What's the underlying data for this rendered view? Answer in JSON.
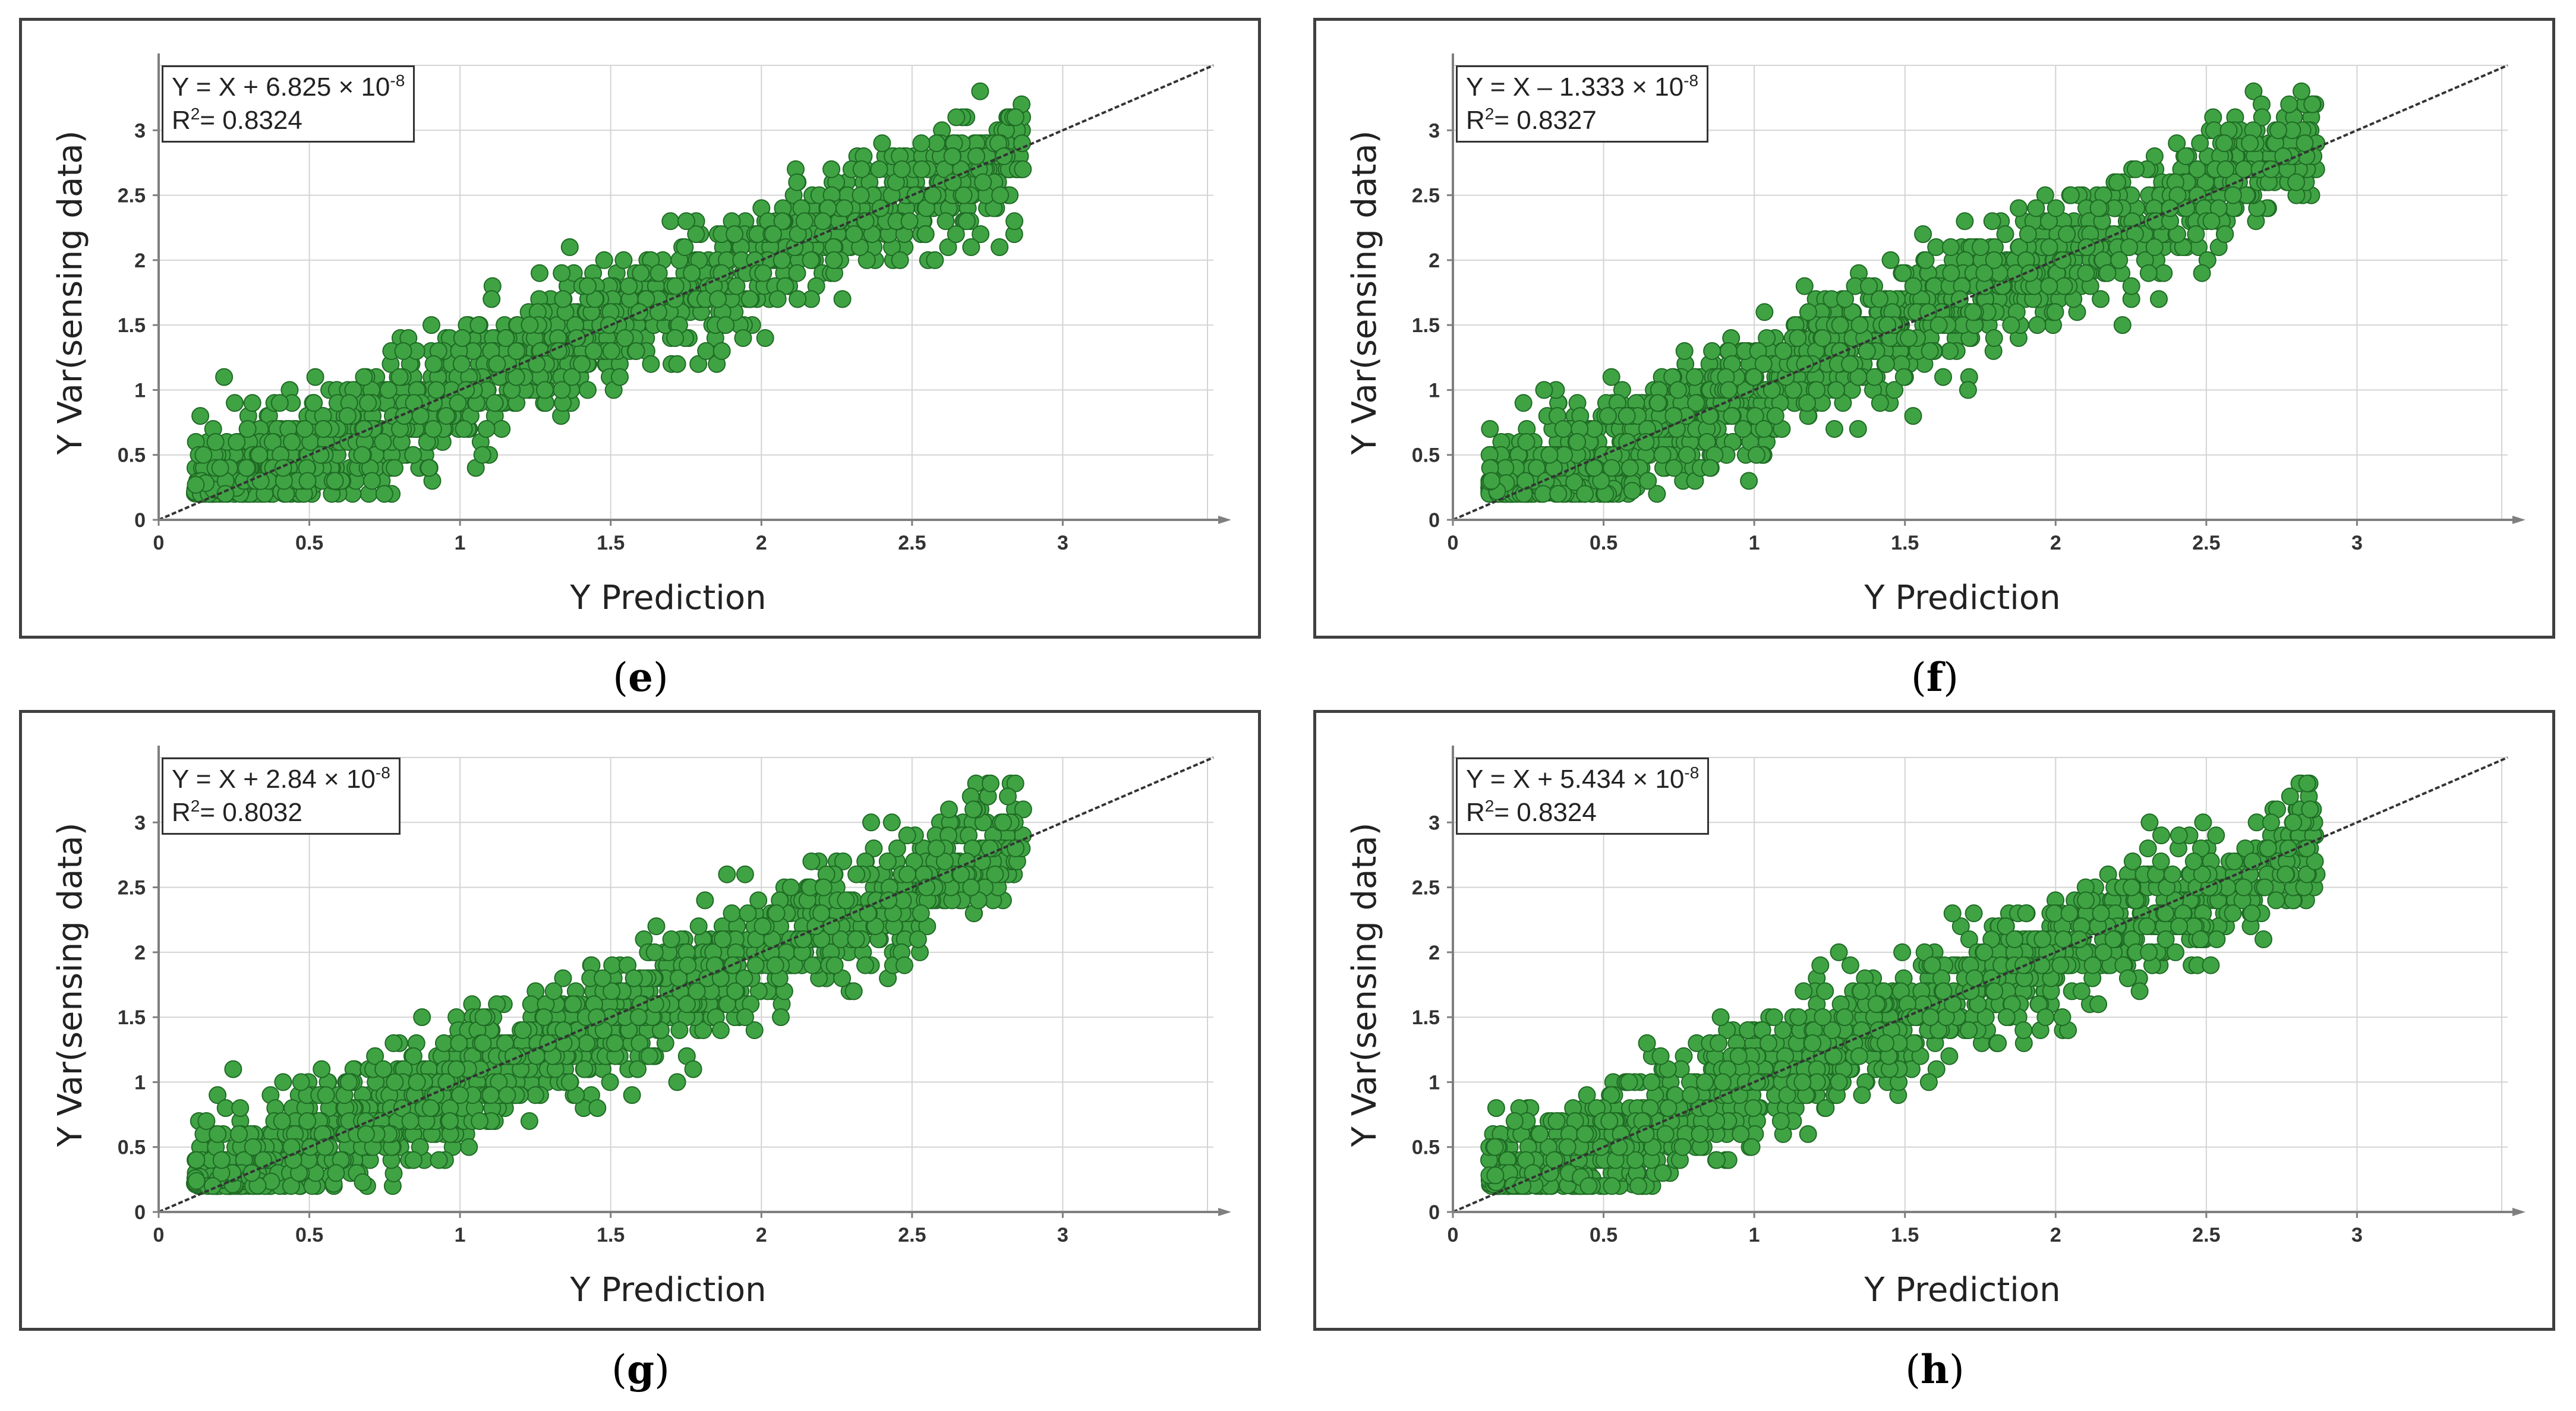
{
  "chart_data": [
    {
      "type": "scatter",
      "panel": "e",
      "equation": {
        "prefix": "Y = X + 6.825 × 10",
        "exponent": "-8"
      },
      "r2": {
        "label": "R",
        "sup": "2",
        "value": "= 0.8324"
      },
      "xlabel": "Y Prediction",
      "ylabel": "Y Var(sensing data)",
      "xticks": [
        "0",
        "0.5",
        "1",
        "1.5",
        "2",
        "2.5",
        "3"
      ],
      "yticks": [
        "0",
        "0.5",
        "1",
        "1.5",
        "2",
        "2.5",
        "3"
      ],
      "xlim": [
        0,
        3.5
      ],
      "ylim": [
        0,
        3.5
      ],
      "fit_line": {
        "slope": 1,
        "intercept": 0
      },
      "grid": true,
      "seed": 11
    },
    {
      "type": "scatter",
      "panel": "f",
      "equation": {
        "prefix": "Y = X – 1.333 × 10",
        "exponent": "-8"
      },
      "r2": {
        "label": "R",
        "sup": "2",
        "value": "= 0.8327"
      },
      "xlabel": "Y Prediction",
      "ylabel": "Y Var(sensing data)",
      "xticks": [
        "0",
        "0.5",
        "1",
        "1.5",
        "2",
        "2.5",
        "3"
      ],
      "yticks": [
        "0",
        "0.5",
        "1",
        "1.5",
        "2",
        "2.5",
        "3"
      ],
      "xlim": [
        0,
        3.5
      ],
      "ylim": [
        0,
        3.5
      ],
      "fit_line": {
        "slope": 1,
        "intercept": 0
      },
      "grid": true,
      "seed": 23
    },
    {
      "type": "scatter",
      "panel": "g",
      "equation": {
        "prefix": "Y = X + 2.84 × 10",
        "exponent": "-8"
      },
      "r2": {
        "label": "R",
        "sup": "2",
        "value": "= 0.8032"
      },
      "xlabel": "Y Prediction",
      "ylabel": "Y Var(sensing data)",
      "xticks": [
        "0",
        "0.5",
        "1",
        "1.5",
        "2",
        "2.5",
        "3"
      ],
      "yticks": [
        "0",
        "0.5",
        "1",
        "1.5",
        "2",
        "2.5",
        "3"
      ],
      "xlim": [
        0,
        3.5
      ],
      "ylim": [
        0,
        3.5
      ],
      "fit_line": {
        "slope": 1,
        "intercept": 0
      },
      "grid": true,
      "seed": 37
    },
    {
      "type": "scatter",
      "panel": "h",
      "equation": {
        "prefix": "Y = X + 5.434 × 10",
        "exponent": "-8"
      },
      "r2": {
        "label": "R",
        "sup": "2",
        "value": "= 0.8324"
      },
      "xlabel": "Y Prediction",
      "ylabel": "Y Var(sensing data)",
      "xticks": [
        "0",
        "0.5",
        "1",
        "1.5",
        "2",
        "2.5",
        "3"
      ],
      "yticks": [
        "0",
        "0.5",
        "1",
        "1.5",
        "2",
        "2.5",
        "3"
      ],
      "xlim": [
        0,
        3.5
      ],
      "ylim": [
        0,
        3.5
      ],
      "fit_line": {
        "slope": 1,
        "intercept": 0
      },
      "grid": true,
      "seed": 53
    }
  ],
  "captions": [
    "e",
    "f",
    "g",
    "h"
  ],
  "colors": {
    "point_fill": "#3fa344",
    "point_stroke": "#1f6b24",
    "grid": "#d4d4d4",
    "axis": "#7f7f7f",
    "fit_line": "#333333"
  }
}
